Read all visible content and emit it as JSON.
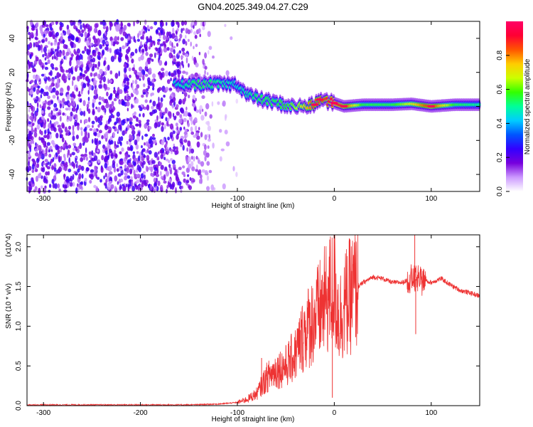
{
  "figure_title": "GN04.2025.349.04.27.C29",
  "chart_data": [
    {
      "type": "heatmap",
      "title": "GN04.2025.349.04.27.C29",
      "xlabel": "Height of straight line (km)",
      "ylabel": "Frequency (Hz)",
      "xlim": [
        -317,
        150
      ],
      "ylim": [
        -50,
        50
      ],
      "x_ticks": [
        -300,
        -200,
        -100,
        0,
        100
      ],
      "y_ticks": [
        -40,
        -20,
        0,
        20,
        40
      ],
      "colorbar": {
        "label": "Normalized spectral amplitude",
        "range": [
          0,
          1
        ],
        "ticks": [
          0.0,
          0.2,
          0.4,
          0.6,
          0.8
        ],
        "colors": [
          "#ffffff",
          "#cc99ff",
          "#7700dd",
          "#3300ff",
          "#0055ff",
          "#00ccff",
          "#00ff99",
          "#33ff00",
          "#ccff00",
          "#ffcc00",
          "#ff5500",
          "#ff0033",
          "#ff0066"
        ]
      },
      "noise_region": {
        "x_start": -317,
        "x_end": -130,
        "amplitude": 0.25
      },
      "signal_trace": [
        {
          "x": -165,
          "freq": 13,
          "amp": 0.45
        },
        {
          "x": -140,
          "freq": 13,
          "amp": 0.55
        },
        {
          "x": -115,
          "freq": 13,
          "amp": 0.5
        },
        {
          "x": -100,
          "freq": 13,
          "amp": 0.45
        },
        {
          "x": -90,
          "freq": 7,
          "amp": 0.5
        },
        {
          "x": -75,
          "freq": 4,
          "amp": 0.55
        },
        {
          "x": -60,
          "freq": 2,
          "amp": 0.55
        },
        {
          "x": -45,
          "freq": 0,
          "amp": 0.6
        },
        {
          "x": -30,
          "freq": 0,
          "amp": 0.75
        },
        {
          "x": -20,
          "freq": 1,
          "amp": 0.85
        },
        {
          "x": -15,
          "freq": 4,
          "amp": 0.85
        },
        {
          "x": 0,
          "freq": 2,
          "amp": 0.95
        },
        {
          "x": 10,
          "freq": 0,
          "amp": 0.9
        },
        {
          "x": 30,
          "freq": 1,
          "amp": 0.55
        },
        {
          "x": 60,
          "freq": 1,
          "amp": 0.55
        },
        {
          "x": 80,
          "freq": 1.5,
          "amp": 0.7
        },
        {
          "x": 100,
          "freq": 0,
          "amp": 0.9
        },
        {
          "x": 125,
          "freq": 1,
          "amp": 0.55
        },
        {
          "x": 150,
          "freq": 1,
          "amp": 0.5
        }
      ]
    },
    {
      "type": "line",
      "xlabel": "Height of straight line (km)",
      "ylabel": "SNR (10 * v/v)",
      "y_scale_label": "(x10^4)",
      "xlim": [
        -317,
        150
      ],
      "ylim": [
        0,
        2.15
      ],
      "x_ticks": [
        -300,
        -200,
        -100,
        0,
        100
      ],
      "y_ticks": [
        0.0,
        0.5,
        1.0,
        1.5,
        2.0
      ],
      "line_color": "#ee3333",
      "series": [
        {
          "x": [
            -317,
            -250,
            -200,
            -150,
            -120,
            -100,
            -90,
            -80,
            -70,
            -60,
            -50,
            -40,
            -30,
            -20,
            -10,
            0,
            5,
            10,
            20,
            30,
            40,
            50,
            60,
            70,
            80,
            90,
            100,
            110,
            120,
            130,
            140,
            150
          ],
          "values": [
            0.01,
            0.01,
            0.01,
            0.01,
            0.02,
            0.04,
            0.08,
            0.15,
            0.35,
            0.45,
            0.5,
            0.65,
            0.95,
            1.1,
            1.3,
            1.5,
            1.1,
            1.25,
            1.45,
            1.55,
            1.62,
            1.6,
            1.55,
            1.55,
            1.6,
            1.58,
            1.55,
            1.6,
            1.52,
            1.45,
            1.42,
            1.38
          ]
        }
      ],
      "spikes": [
        {
          "x": 0,
          "value": 2.15
        },
        {
          "x": -2,
          "value": 0.1
        },
        {
          "x": 83,
          "value": 2.15
        },
        {
          "x": 84,
          "value": 0.9
        },
        {
          "x": -75,
          "value": 0.6
        },
        {
          "x": -25,
          "value": 1.3
        }
      ]
    }
  ]
}
